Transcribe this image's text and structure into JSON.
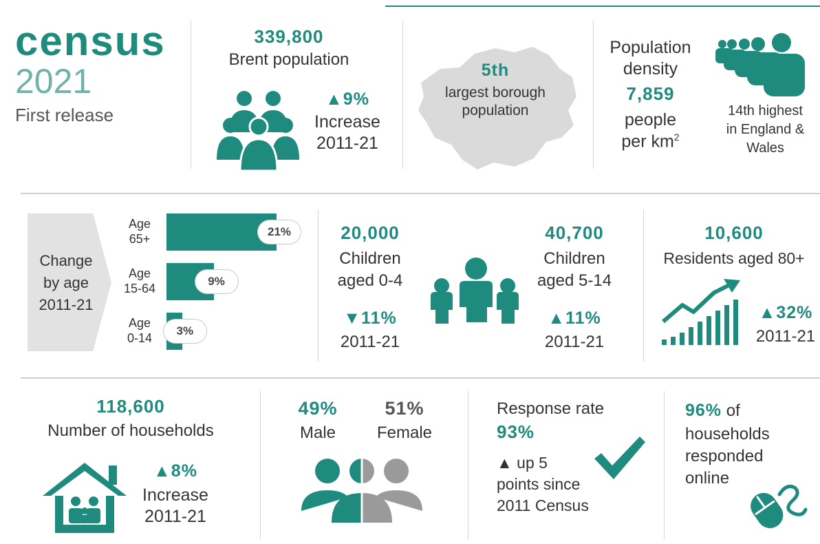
{
  "colors": {
    "accent": "#1f8a7e",
    "grey": "#9a9a9a",
    "text": "#333333"
  },
  "brand": {
    "logo_text": "census",
    "year": "2021",
    "subtitle": "First release"
  },
  "population": {
    "value": "339,800",
    "label": "Brent population",
    "change": "▲9%",
    "change_label": "Increase",
    "period": "2011-21",
    "icon": "people-group-icon"
  },
  "borough_rank": {
    "rank": "5th",
    "line1": "largest borough",
    "line2": "population",
    "icon": "london-map-icon"
  },
  "density": {
    "line1": "Population",
    "line2": "density",
    "value": "7,859",
    "unit_line1": "people",
    "unit_line2": "per km",
    "unit_sup": "2",
    "rank_line1": "14th highest",
    "rank_line2": "in England &",
    "rank_line3": "Wales",
    "icon": "people-row-icon"
  },
  "age_change": {
    "title_line1": "Change",
    "title_line2": "by age",
    "title_line3": "2011-21",
    "bars": [
      {
        "label_line1": "Age",
        "label_line2": "65+",
        "value": 21,
        "display": "21%"
      },
      {
        "label_line1": "Age",
        "label_line2": "15-64",
        "value": 9,
        "display": "9%"
      },
      {
        "label_line1": "Age",
        "label_line2": "0-14",
        "value": 3,
        "display": "3%"
      }
    ]
  },
  "children_young": {
    "value": "20,000",
    "line1": "Children",
    "line2": "aged 0-4",
    "change": "▼11%",
    "period": "2011-21"
  },
  "children_older": {
    "value": "40,700",
    "line1": "Children",
    "line2": "aged 5-14",
    "change": "▲11%",
    "period": "2011-21",
    "icon": "family-icon"
  },
  "elderly": {
    "value": "10,600",
    "label": "Residents aged 80+",
    "change": "▲32%",
    "period": "2011-21",
    "icon": "growth-chart-icon"
  },
  "households": {
    "value": "118,600",
    "label": "Number of households",
    "change": "▲8%",
    "change_label": "Increase",
    "period": "2011-21",
    "icon": "house-family-icon"
  },
  "sex": {
    "male_pct": "49%",
    "male_label": "Male",
    "female_pct": "51%",
    "female_label": "Female",
    "icon": "male-female-icon"
  },
  "response": {
    "label": "Response rate",
    "value": "93%",
    "line1": "▲ up 5",
    "line2": "points since",
    "line3": "2011 Census",
    "icon": "checkmark-icon"
  },
  "online": {
    "value": "96%",
    "value_suffix": " of",
    "line1": "households",
    "line2": "responded",
    "line3": "online",
    "icon": "computer-mouse-icon"
  }
}
